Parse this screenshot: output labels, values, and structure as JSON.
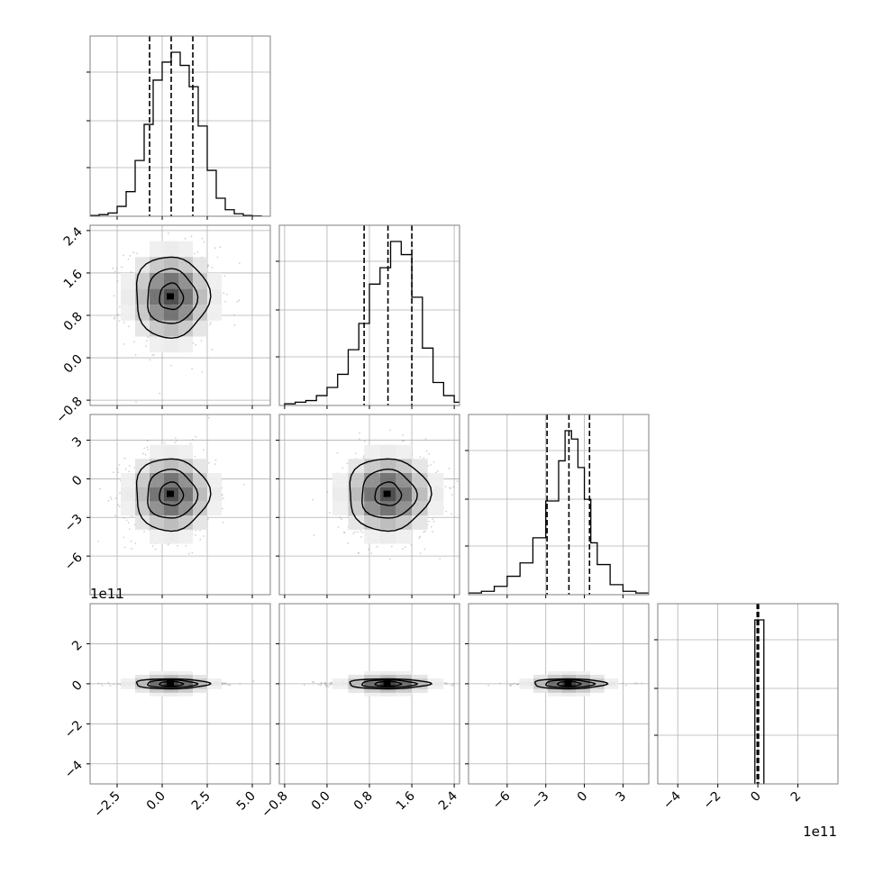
{
  "figure": {
    "offset_x_label": "1e11",
    "offset_y_label": "1e11"
  },
  "chart_data": {
    "type": "corner",
    "n_params": 4,
    "title": "",
    "param_labels": [
      "",
      "",
      "",
      ""
    ],
    "params": [
      {
        "range": [
          -4.0,
          6.0
        ],
        "ticks": [
          -2.5,
          0.0,
          2.5,
          5.0
        ],
        "tick_labels": [
          "−2.5",
          "0.0",
          "2.5",
          "5.0"
        ],
        "quantiles": [
          -0.7,
          0.5,
          1.7
        ],
        "hist_edges": [
          -4.0,
          -3.5,
          -3.0,
          -2.5,
          -2.0,
          -1.5,
          -1.0,
          -0.5,
          0.0,
          0.5,
          1.0,
          1.5,
          2.0,
          2.5,
          3.0,
          3.5,
          4.0,
          4.5,
          5.0,
          5.5
        ],
        "hist_counts": [
          0.005,
          0.01,
          0.02,
          0.06,
          0.15,
          0.34,
          0.56,
          0.83,
          0.94,
          1.0,
          0.92,
          0.79,
          0.55,
          0.28,
          0.11,
          0.04,
          0.015,
          0.005,
          0.002
        ]
      },
      {
        "range": [
          -0.9,
          2.5
        ],
        "ticks": [
          -0.8,
          0.0,
          0.8,
          1.6,
          2.4
        ],
        "tick_labels": [
          "−0.8",
          "0.0",
          "0.8",
          "1.6",
          "2.4"
        ],
        "quantiles": [
          0.7,
          1.15,
          1.6
        ],
        "hist_edges": [
          -0.8,
          -0.6,
          -0.4,
          -0.2,
          0.0,
          0.2,
          0.4,
          0.6,
          0.8,
          1.0,
          1.2,
          1.4,
          1.6,
          1.8,
          2.0,
          2.2,
          2.4,
          2.6
        ],
        "hist_counts": [
          0.01,
          0.02,
          0.03,
          0.06,
          0.11,
          0.19,
          0.34,
          0.5,
          0.74,
          0.84,
          1.0,
          0.92,
          0.66,
          0.35,
          0.14,
          0.06,
          0.02
        ]
      },
      {
        "range": [
          -9.0,
          5.0
        ],
        "ticks": [
          -6,
          -3,
          0,
          3
        ],
        "tick_labels": [
          "−6",
          "−3",
          "0",
          "3"
        ],
        "quantiles": [
          -2.9,
          -1.2,
          0.4
        ],
        "hist_edges": [
          -9.0,
          -8.0,
          -7.0,
          -6.0,
          -5.0,
          -4.0,
          -3.0,
          -2.0,
          -1.5,
          -1.0,
          -0.5,
          0.0,
          0.5,
          1.0,
          2.0,
          3.0,
          4.0,
          5.0
        ],
        "hist_counts": [
          0.01,
          0.02,
          0.05,
          0.11,
          0.19,
          0.34,
          0.56,
          0.8,
          0.98,
          0.93,
          0.76,
          0.57,
          0.31,
          0.18,
          0.06,
          0.02,
          0.01
        ]
      },
      {
        "range": [
          -5.0,
          4.0
        ],
        "ticks": [
          -4,
          -2,
          0,
          2
        ],
        "tick_labels": [
          "−4",
          "−2",
          "0",
          "2"
        ],
        "quantiles": [
          0.0,
          0.0,
          0.0
        ],
        "offset_label": "1e11",
        "hist_edges": [
          -0.15,
          0.3
        ],
        "hist_counts": [
          1.0
        ]
      }
    ],
    "contour_levels": [
      "0.39",
      "0.86",
      "0.99"
    ],
    "grid": true
  }
}
